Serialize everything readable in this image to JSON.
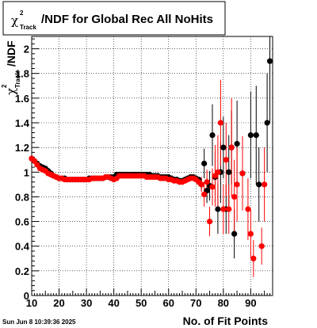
{
  "title": {
    "symbol": "χ",
    "superscript": "2",
    "subscript": "Track",
    "text": "/NDF for Global Rec All NoHits"
  },
  "ylabel": {
    "symbol": "χ",
    "superscript": "2",
    "subscript": "Track",
    "text": "/NDF"
  },
  "xlabel": "No. of Fit Points",
  "timestamp": "Sun Jun  8 10:39:36 2025",
  "colors": {
    "black_series": "#000000",
    "red_series": "#ff0000",
    "frame": "#000000",
    "grid": "#000000"
  },
  "chart_data": {
    "type": "scatter",
    "xlim": [
      10,
      98
    ],
    "ylim": [
      0,
      2.1
    ],
    "x_ticks": [
      10,
      20,
      30,
      40,
      50,
      60,
      70,
      80,
      90
    ],
    "y_ticks": [
      0,
      0.2,
      0.4,
      0.6,
      0.8,
      1,
      1.2,
      1.4,
      1.6,
      1.8,
      2
    ],
    "grid": true,
    "series": [
      {
        "color": "#000000",
        "marker": "circle",
        "points": [
          {
            "x": 10,
            "y": 1.11,
            "e": 0.01
          },
          {
            "x": 11,
            "y": 1.09,
            "e": 0.01
          },
          {
            "x": 12,
            "y": 1.07,
            "e": 0.01
          },
          {
            "x": 13,
            "y": 1.05,
            "e": 0.01
          },
          {
            "x": 14,
            "y": 1.04,
            "e": 0.01
          },
          {
            "x": 15,
            "y": 1.03,
            "e": 0.01
          },
          {
            "x": 16,
            "y": 1.01,
            "e": 0.01
          },
          {
            "x": 17,
            "y": 0.99,
            "e": 0.01
          },
          {
            "x": 18,
            "y": 0.97,
            "e": 0.01
          },
          {
            "x": 19,
            "y": 0.96,
            "e": 0.01
          },
          {
            "x": 20,
            "y": 0.95,
            "e": 0.01
          },
          {
            "x": 21,
            "y": 0.95,
            "e": 0.01
          },
          {
            "x": 22,
            "y": 0.95,
            "e": 0.01
          },
          {
            "x": 23,
            "y": 0.94,
            "e": 0.01
          },
          {
            "x": 24,
            "y": 0.94,
            "e": 0.01
          },
          {
            "x": 25,
            "y": 0.94,
            "e": 0.01
          },
          {
            "x": 26,
            "y": 0.94,
            "e": 0.01
          },
          {
            "x": 27,
            "y": 0.94,
            "e": 0.01
          },
          {
            "x": 28,
            "y": 0.94,
            "e": 0.01
          },
          {
            "x": 29,
            "y": 0.94,
            "e": 0.01
          },
          {
            "x": 30,
            "y": 0.94,
            "e": 0.01
          },
          {
            "x": 31,
            "y": 0.95,
            "e": 0.01
          },
          {
            "x": 32,
            "y": 0.95,
            "e": 0.01
          },
          {
            "x": 33,
            "y": 0.95,
            "e": 0.01
          },
          {
            "x": 34,
            "y": 0.95,
            "e": 0.01
          },
          {
            "x": 35,
            "y": 0.95,
            "e": 0.01
          },
          {
            "x": 36,
            "y": 0.95,
            "e": 0.01
          },
          {
            "x": 37,
            "y": 0.96,
            "e": 0.01
          },
          {
            "x": 38,
            "y": 0.96,
            "e": 0.01
          },
          {
            "x": 39,
            "y": 0.96,
            "e": 0.01
          },
          {
            "x": 40,
            "y": 0.96,
            "e": 0.01
          },
          {
            "x": 41,
            "y": 0.98,
            "e": 0.01
          },
          {
            "x": 42,
            "y": 0.98,
            "e": 0.01
          },
          {
            "x": 43,
            "y": 0.98,
            "e": 0.01
          },
          {
            "x": 44,
            "y": 0.98,
            "e": 0.01
          },
          {
            "x": 45,
            "y": 0.98,
            "e": 0.01
          },
          {
            "x": 46,
            "y": 0.98,
            "e": 0.01
          },
          {
            "x": 47,
            "y": 0.98,
            "e": 0.01
          },
          {
            "x": 48,
            "y": 0.98,
            "e": 0.01
          },
          {
            "x": 49,
            "y": 0.98,
            "e": 0.01
          },
          {
            "x": 50,
            "y": 0.98,
            "e": 0.01
          },
          {
            "x": 51,
            "y": 0.98,
            "e": 0.01
          },
          {
            "x": 52,
            "y": 0.98,
            "e": 0.01
          },
          {
            "x": 53,
            "y": 0.98,
            "e": 0.01
          },
          {
            "x": 54,
            "y": 0.97,
            "e": 0.01
          },
          {
            "x": 55,
            "y": 0.97,
            "e": 0.01
          },
          {
            "x": 56,
            "y": 0.97,
            "e": 0.01
          },
          {
            "x": 57,
            "y": 0.96,
            "e": 0.01
          },
          {
            "x": 58,
            "y": 0.96,
            "e": 0.01
          },
          {
            "x": 59,
            "y": 0.96,
            "e": 0.01
          },
          {
            "x": 60,
            "y": 0.96,
            "e": 0.01
          },
          {
            "x": 61,
            "y": 0.95,
            "e": 0.01
          },
          {
            "x": 62,
            "y": 0.94,
            "e": 0.01
          },
          {
            "x": 63,
            "y": 0.94,
            "e": 0.01
          },
          {
            "x": 64,
            "y": 0.93,
            "e": 0.01
          },
          {
            "x": 65,
            "y": 0.93,
            "e": 0.01
          },
          {
            "x": 66,
            "y": 0.94,
            "e": 0.01
          },
          {
            "x": 67,
            "y": 0.95,
            "e": 0.01
          },
          {
            "x": 68,
            "y": 0.96,
            "e": 0.01
          },
          {
            "x": 69,
            "y": 0.96,
            "e": 0.01
          },
          {
            "x": 70,
            "y": 0.95,
            "e": 0.02
          },
          {
            "x": 71,
            "y": 0.94,
            "e": 0.02
          },
          {
            "x": 72,
            "y": 0.9,
            "e": 0.05
          },
          {
            "x": 73,
            "y": 1.07,
            "e": 0.12
          },
          {
            "x": 74,
            "y": 0.85,
            "e": 0.1
          },
          {
            "x": 75,
            "y": 0.89,
            "e": 0.12
          },
          {
            "x": 76,
            "y": 1.3,
            "e": 0.25
          },
          {
            "x": 77,
            "y": 0.96,
            "e": 0.2
          },
          {
            "x": 78,
            "y": 0.7,
            "e": 0.2
          },
          {
            "x": 79,
            "y": 1.0,
            "e": 0.25
          },
          {
            "x": 80,
            "y": 1.2,
            "e": 0.25
          },
          {
            "x": 81,
            "y": 0.7,
            "e": 0.2
          },
          {
            "x": 82,
            "y": 1.0,
            "e": 0.3
          },
          {
            "x": 83,
            "y": 1.2,
            "e": 0.3
          },
          {
            "x": 84,
            "y": 0.5,
            "e": 0.2
          },
          {
            "x": 85,
            "y": 1.23,
            "e": 0.35
          },
          {
            "x": 87,
            "y": 0.99,
            "e": 0.3
          },
          {
            "x": 90,
            "y": 1.3,
            "e": 0.35
          },
          {
            "x": 92,
            "y": 1.3,
            "e": 0.4
          },
          {
            "x": 93,
            "y": 0.9,
            "e": 0.3
          },
          {
            "x": 96,
            "y": 1.4,
            "e": 0.4
          },
          {
            "x": 97,
            "y": 1.9,
            "e": 0.5
          }
        ]
      },
      {
        "color": "#ff0000",
        "marker": "circle",
        "points": [
          {
            "x": 10,
            "y": 1.11,
            "e": 0.01
          },
          {
            "x": 11,
            "y": 1.09,
            "e": 0.01
          },
          {
            "x": 12,
            "y": 1.06,
            "e": 0.01
          },
          {
            "x": 13,
            "y": 1.03,
            "e": 0.01
          },
          {
            "x": 14,
            "y": 1.02,
            "e": 0.01
          },
          {
            "x": 15,
            "y": 1.01,
            "e": 0.01
          },
          {
            "x": 16,
            "y": 0.99,
            "e": 0.01
          },
          {
            "x": 17,
            "y": 0.98,
            "e": 0.01
          },
          {
            "x": 18,
            "y": 0.97,
            "e": 0.01
          },
          {
            "x": 19,
            "y": 0.96,
            "e": 0.01
          },
          {
            "x": 20,
            "y": 0.95,
            "e": 0.01
          },
          {
            "x": 21,
            "y": 0.95,
            "e": 0.01
          },
          {
            "x": 22,
            "y": 0.94,
            "e": 0.01
          },
          {
            "x": 23,
            "y": 0.94,
            "e": 0.01
          },
          {
            "x": 24,
            "y": 0.94,
            "e": 0.01
          },
          {
            "x": 25,
            "y": 0.94,
            "e": 0.01
          },
          {
            "x": 26,
            "y": 0.94,
            "e": 0.01
          },
          {
            "x": 27,
            "y": 0.94,
            "e": 0.01
          },
          {
            "x": 28,
            "y": 0.94,
            "e": 0.01
          },
          {
            "x": 29,
            "y": 0.94,
            "e": 0.01
          },
          {
            "x": 30,
            "y": 0.94,
            "e": 0.01
          },
          {
            "x": 31,
            "y": 0.94,
            "e": 0.01
          },
          {
            "x": 32,
            "y": 0.95,
            "e": 0.01
          },
          {
            "x": 33,
            "y": 0.95,
            "e": 0.01
          },
          {
            "x": 34,
            "y": 0.95,
            "e": 0.01
          },
          {
            "x": 35,
            "y": 0.95,
            "e": 0.01
          },
          {
            "x": 36,
            "y": 0.95,
            "e": 0.01
          },
          {
            "x": 37,
            "y": 0.96,
            "e": 0.01
          },
          {
            "x": 38,
            "y": 0.96,
            "e": 0.01
          },
          {
            "x": 39,
            "y": 0.95,
            "e": 0.01
          },
          {
            "x": 40,
            "y": 0.94,
            "e": 0.01
          },
          {
            "x": 41,
            "y": 0.95,
            "e": 0.01
          },
          {
            "x": 42,
            "y": 0.97,
            "e": 0.01
          },
          {
            "x": 43,
            "y": 0.97,
            "e": 0.01
          },
          {
            "x": 44,
            "y": 0.97,
            "e": 0.01
          },
          {
            "x": 45,
            "y": 0.97,
            "e": 0.01
          },
          {
            "x": 46,
            "y": 0.97,
            "e": 0.01
          },
          {
            "x": 47,
            "y": 0.97,
            "e": 0.01
          },
          {
            "x": 48,
            "y": 0.97,
            "e": 0.01
          },
          {
            "x": 49,
            "y": 0.97,
            "e": 0.01
          },
          {
            "x": 50,
            "y": 0.97,
            "e": 0.01
          },
          {
            "x": 51,
            "y": 0.97,
            "e": 0.01
          },
          {
            "x": 52,
            "y": 0.96,
            "e": 0.01
          },
          {
            "x": 53,
            "y": 0.96,
            "e": 0.01
          },
          {
            "x": 54,
            "y": 0.96,
            "e": 0.01
          },
          {
            "x": 55,
            "y": 0.96,
            "e": 0.01
          },
          {
            "x": 56,
            "y": 0.96,
            "e": 0.01
          },
          {
            "x": 57,
            "y": 0.95,
            "e": 0.01
          },
          {
            "x": 58,
            "y": 0.95,
            "e": 0.01
          },
          {
            "x": 59,
            "y": 0.95,
            "e": 0.01
          },
          {
            "x": 60,
            "y": 0.94,
            "e": 0.01
          },
          {
            "x": 61,
            "y": 0.94,
            "e": 0.01
          },
          {
            "x": 62,
            "y": 0.93,
            "e": 0.01
          },
          {
            "x": 63,
            "y": 0.93,
            "e": 0.01
          },
          {
            "x": 64,
            "y": 0.92,
            "e": 0.01
          },
          {
            "x": 65,
            "y": 0.92,
            "e": 0.01
          },
          {
            "x": 66,
            "y": 0.93,
            "e": 0.01
          },
          {
            "x": 67,
            "y": 0.94,
            "e": 0.01
          },
          {
            "x": 68,
            "y": 0.95,
            "e": 0.01
          },
          {
            "x": 69,
            "y": 0.95,
            "e": 0.01
          },
          {
            "x": 70,
            "y": 0.94,
            "e": 0.02
          },
          {
            "x": 71,
            "y": 0.92,
            "e": 0.03
          },
          {
            "x": 72,
            "y": 0.9,
            "e": 0.06
          },
          {
            "x": 73,
            "y": 0.82,
            "e": 0.1
          },
          {
            "x": 74,
            "y": 0.92,
            "e": 0.1
          },
          {
            "x": 75,
            "y": 0.6,
            "e": 0.12
          },
          {
            "x": 76,
            "y": 0.88,
            "e": 0.15
          },
          {
            "x": 77,
            "y": 0.97,
            "e": 0.25
          },
          {
            "x": 78,
            "y": 1.0,
            "e": 0.3
          },
          {
            "x": 79,
            "y": 1.4,
            "e": 0.35
          },
          {
            "x": 80,
            "y": 0.7,
            "e": 0.2
          },
          {
            "x": 81,
            "y": 1.1,
            "e": 0.3
          },
          {
            "x": 82,
            "y": 0.7,
            "e": 0.2
          },
          {
            "x": 83,
            "y": 1.2,
            "e": 0.4
          },
          {
            "x": 84,
            "y": 0.8,
            "e": 0.3
          },
          {
            "x": 85,
            "y": 0.9,
            "e": 0.3
          },
          {
            "x": 87,
            "y": 0.99,
            "e": 0.3
          },
          {
            "x": 89,
            "y": 0.7,
            "e": 0.25
          },
          {
            "x": 90,
            "y": 0.5,
            "e": 0.2
          },
          {
            "x": 91,
            "y": 0.3,
            "e": 0.15
          },
          {
            "x": 94,
            "y": 0.4,
            "e": 0.15
          },
          {
            "x": 95,
            "y": 0.9,
            "e": 0.3
          }
        ]
      }
    ]
  }
}
